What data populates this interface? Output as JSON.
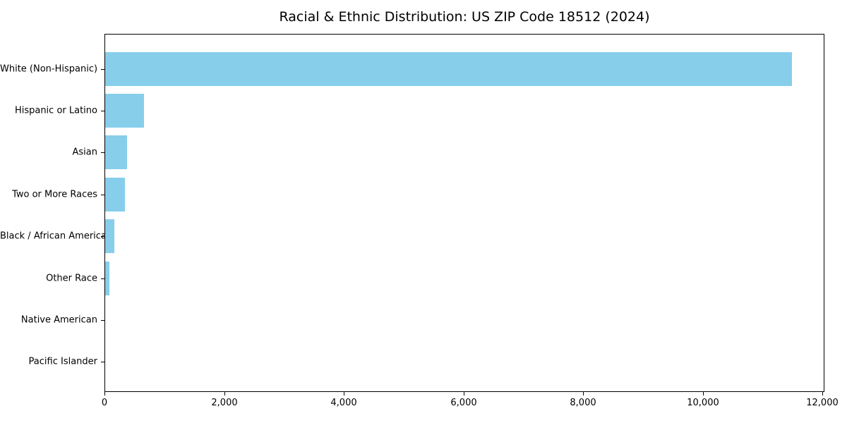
{
  "chart_data": {
    "type": "bar",
    "orientation": "horizontal",
    "title": "Racial & Ethnic Distribution: US ZIP Code 18512 (2024)",
    "categories": [
      "White (Non-Hispanic)",
      "Hispanic or Latino",
      "Asian",
      "Two or More Races",
      "Black / African American",
      "Other Race",
      "Native American",
      "Pacific Islander"
    ],
    "values": [
      11480,
      650,
      370,
      330,
      155,
      75,
      0,
      0
    ],
    "bar_color": "#87CEEB",
    "xlabel": "",
    "ylabel": "",
    "xlim": [
      0,
      12030
    ],
    "xticks": [
      0,
      2000,
      4000,
      6000,
      8000,
      10000,
      12000
    ],
    "xtick_labels": [
      "0",
      "2,000",
      "4,000",
      "6,000",
      "8,000",
      "10,000",
      "12,000"
    ],
    "grid": false,
    "legend": "none",
    "plot_border": "#000000",
    "background": "#ffffff"
  }
}
